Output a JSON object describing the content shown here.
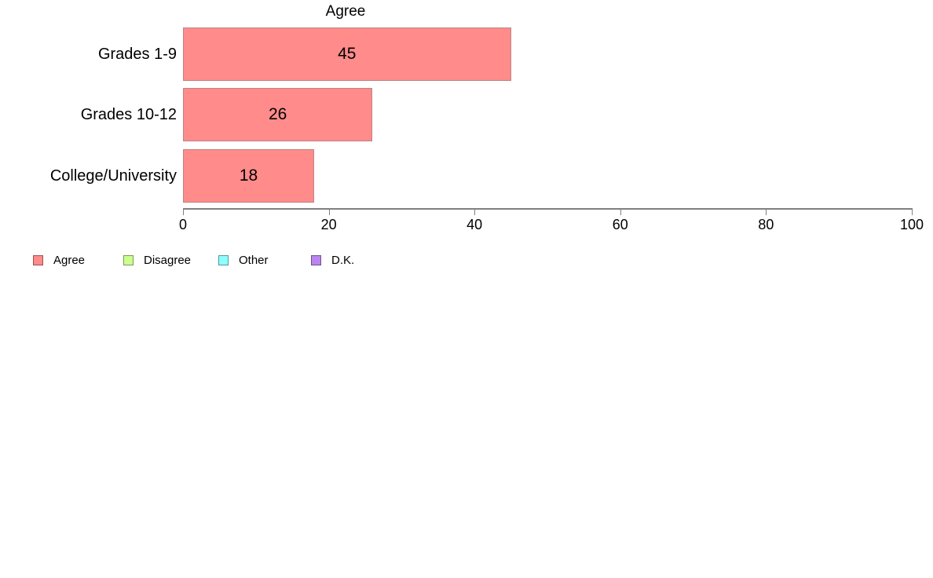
{
  "chart_data": {
    "type": "bar",
    "orientation": "horizontal",
    "title": "Agree",
    "categories": [
      "Grades 1-9",
      "Grades 10-12",
      "College/University"
    ],
    "values": [
      45,
      26,
      18
    ],
    "bar_labels": [
      "45",
      "26",
      "18"
    ],
    "xlabel": "",
    "ylabel": "",
    "xlim": [
      0,
      100
    ],
    "xticks": [
      0,
      20,
      40,
      60,
      80,
      100
    ],
    "grid": false,
    "legend_position": "bottom-left",
    "colors": {
      "bar_fill": "#FF8B8B",
      "bar_border": "#C08282",
      "axis": "#808080",
      "text": "#000000"
    },
    "legend": [
      {
        "label": "Agree",
        "color": "#FF8B8B"
      },
      {
        "label": "Disagree",
        "color": "#CCFF90"
      },
      {
        "label": "Other",
        "color": "#8DFFFF"
      },
      {
        "label": "D.K.",
        "color": "#BA85F0"
      }
    ]
  }
}
